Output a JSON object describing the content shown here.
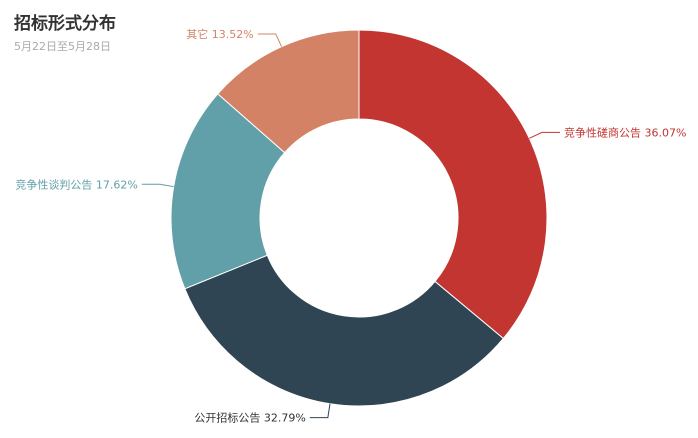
{
  "chart_data": {
    "type": "pie",
    "title": "招标形式分布",
    "subtitle": "5月22日至5月28日",
    "slices": [
      {
        "name": "竞争性磋商公告",
        "value": 36.07,
        "label": "竞争性磋商公告  36.07%",
        "color": "#c23531"
      },
      {
        "name": "公开招标公告",
        "value": 32.79,
        "label": "公开招标公告  32.79%",
        "color": "#2f4554"
      },
      {
        "name": "竞争性谈判公告",
        "value": 17.62,
        "label": "竞争性谈判公告  17.62%",
        "color": "#61a0a8"
      },
      {
        "name": "其它",
        "value": 13.52,
        "label": "其它  13.52%",
        "color": "#d48265"
      }
    ]
  }
}
